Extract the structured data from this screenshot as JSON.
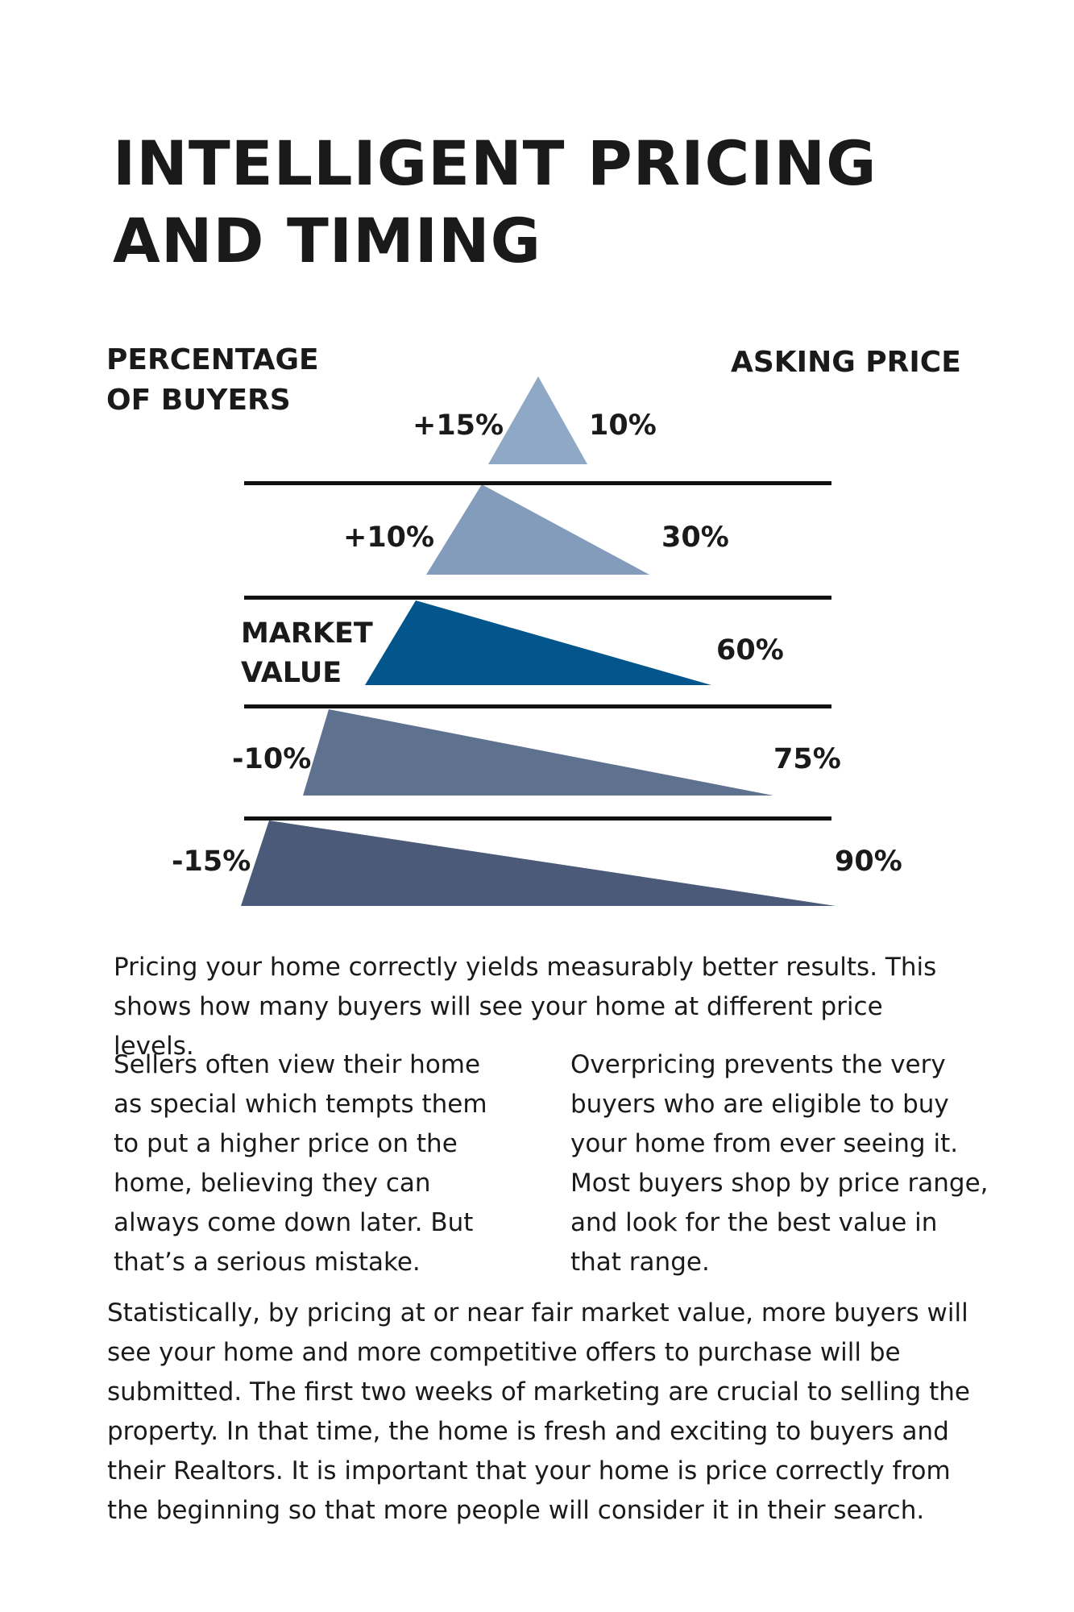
{
  "title": [
    "INTELLIGENT PRICING",
    "AND TIMING"
  ],
  "left_header": [
    "PERCENTAGE",
    "OF BUYERS"
  ],
  "right_header": "ASKING PRICE",
  "tiers": [
    {
      "price": "+15%",
      "buyers": "10%",
      "color": "#8fa8c6"
    },
    {
      "price": "+10%",
      "buyers": "30%",
      "color": "#839cbb"
    },
    {
      "price": [
        "MARKET",
        "VALUE"
      ],
      "buyers": "60%",
      "color": "#03568c"
    },
    {
      "price": "-10%",
      "buyers": "75%",
      "color": "#5e718f"
    },
    {
      "price": "-15%",
      "buyers": "90%",
      "color": "#4a5a78"
    }
  ],
  "intro": "Pricing your home correctly yields measurably better results. This shows how many buyers will see your home at different price levels.",
  "col_left": "Sellers often view their home as special which tempts them to put a higher price on the home, believing they can always come down later. But that’s a serious mistake.",
  "col_right": "Overpricing prevents the very buyers who are eligible to buy your home from ever seeing it. Most buyers shop by price range, and look for the best value in that range.",
  "closing": "Statistically, by pricing at or near fair market value, more buyers will see your home and more competitive offers to purchase will be submitted. The first two weeks of marketing are crucial to selling the property. In that time, the home is fresh and exciting to buyers and their Realtors. It is important that your home is price correctly from the beginning so that more people will consider it in their search."
}
